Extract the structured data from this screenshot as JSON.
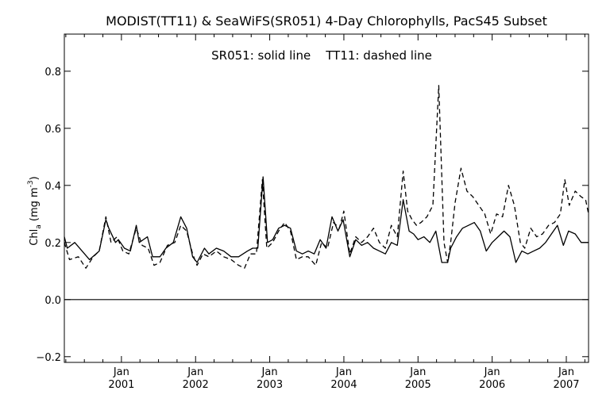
{
  "chart_data": {
    "type": "line",
    "title": "MODIST(TT11) & SeaWiFS(SR051) 4-Day Chlorophylls, PacS45 Subset",
    "legend_text": "SR051: solid line    TT11: dashed line",
    "ylabel": {
      "main": "Chl",
      "sub": "a",
      "units": " (mg m",
      "sup": "-3",
      "close": ")"
    },
    "xlim": [
      2000.23,
      2007.3
    ],
    "ylim": [
      -0.22,
      0.93
    ],
    "yticks": [
      -0.2,
      0.0,
      0.2,
      0.4,
      0.6,
      0.8
    ],
    "ytick_labels": [
      "−0.2",
      "0.0",
      "0.2",
      "0.4",
      "0.6",
      "0.8"
    ],
    "xticks": [
      {
        "value": 2001.0,
        "month": "Jan",
        "year": "2001"
      },
      {
        "value": 2002.0,
        "month": "Jan",
        "year": "2002"
      },
      {
        "value": 2003.0,
        "month": "Jan",
        "year": "2003"
      },
      {
        "value": 2004.0,
        "month": "Jan",
        "year": "2004"
      },
      {
        "value": 2005.0,
        "month": "Jan",
        "year": "2005"
      },
      {
        "value": 2006.0,
        "month": "Jan",
        "year": "2006"
      },
      {
        "value": 2007.0,
        "month": "Jan",
        "year": "2007"
      }
    ],
    "zero_line": 0.0,
    "series": [
      {
        "name": "SR051",
        "style": "solid",
        "x": [
          2000.23,
          2000.27,
          2000.37,
          2000.57,
          2000.7,
          2000.79,
          2000.83,
          2000.92,
          2000.96,
          2001.04,
          2001.12,
          2001.2,
          2001.24,
          2001.35,
          2001.42,
          2001.52,
          2001.6,
          2001.7,
          2001.8,
          2001.88,
          2001.96,
          2002.02,
          2002.12,
          2002.18,
          2002.28,
          2002.38,
          2002.48,
          2002.58,
          2002.7,
          2002.77,
          2002.84,
          2002.91,
          2002.97,
          2003.04,
          2003.12,
          2003.2,
          2003.28,
          2003.36,
          2003.44,
          2003.52,
          2003.6,
          2003.68,
          2003.76,
          2003.84,
          2003.92,
          2003.99,
          2004.08,
          2004.16,
          2004.24,
          2004.32,
          2004.4,
          2004.48,
          2004.56,
          2004.64,
          2004.72,
          2004.8,
          2004.88,
          2004.94,
          2005.0,
          2005.08,
          2005.16,
          2005.24,
          2005.32,
          2005.4,
          2005.44,
          2005.52,
          2005.6,
          2005.68,
          2005.76,
          2005.84,
          2005.92,
          2006.0,
          2006.08,
          2006.16,
          2006.24,
          2006.32,
          2006.4,
          2006.48,
          2006.56,
          2006.64,
          2006.72,
          2006.8,
          2006.88,
          2006.96,
          2007.03,
          2007.12,
          2007.2,
          2007.3
        ],
        "y": [
          0.22,
          0.18,
          0.2,
          0.14,
          0.17,
          0.28,
          0.25,
          0.2,
          0.21,
          0.18,
          0.17,
          0.26,
          0.2,
          0.22,
          0.15,
          0.15,
          0.18,
          0.2,
          0.29,
          0.25,
          0.15,
          0.13,
          0.18,
          0.16,
          0.18,
          0.17,
          0.15,
          0.15,
          0.17,
          0.18,
          0.18,
          0.43,
          0.2,
          0.21,
          0.25,
          0.26,
          0.25,
          0.17,
          0.16,
          0.17,
          0.16,
          0.21,
          0.18,
          0.29,
          0.24,
          0.28,
          0.15,
          0.21,
          0.19,
          0.2,
          0.18,
          0.17,
          0.16,
          0.2,
          0.19,
          0.35,
          0.24,
          0.23,
          0.21,
          0.22,
          0.2,
          0.24,
          0.13,
          0.13,
          0.18,
          0.22,
          0.25,
          0.26,
          0.27,
          0.24,
          0.17,
          0.2,
          0.22,
          0.24,
          0.22,
          0.13,
          0.17,
          0.16,
          0.17,
          0.18,
          0.2,
          0.23,
          0.26,
          0.19,
          0.24,
          0.23,
          0.2,
          0.2
        ]
      },
      {
        "name": "TT11",
        "style": "dashed",
        "x": [
          2000.23,
          2000.3,
          2000.42,
          2000.52,
          2000.62,
          2000.7,
          2000.79,
          2000.86,
          2000.94,
          2001.02,
          2001.1,
          2001.2,
          2001.28,
          2001.36,
          2001.44,
          2001.52,
          2001.62,
          2001.72,
          2001.8,
          2001.88,
          2001.96,
          2002.02,
          2002.1,
          2002.18,
          2002.28,
          2002.38,
          2002.48,
          2002.58,
          2002.66,
          2002.74,
          2002.82,
          2002.9,
          2002.96,
          2003.04,
          2003.12,
          2003.2,
          2003.28,
          2003.36,
          2003.44,
          2003.52,
          2003.62,
          2003.7,
          2003.78,
          2003.86,
          2003.94,
          2004.0,
          2004.08,
          2004.16,
          2004.24,
          2004.32,
          2004.4,
          2004.48,
          2004.56,
          2004.64,
          2004.72,
          2004.8,
          2004.86,
          2004.92,
          2004.98,
          2005.04,
          2005.12,
          2005.2,
          2005.28,
          2005.35,
          2005.4,
          2005.44,
          2005.5,
          2005.58,
          2005.66,
          2005.74,
          2005.82,
          2005.9,
          2005.98,
          2006.06,
          2006.14,
          2006.22,
          2006.3,
          2006.38,
          2006.44,
          2006.52,
          2006.6,
          2006.68,
          2006.76,
          2006.84,
          2006.92,
          2006.98,
          2007.04,
          2007.12,
          2007.2,
          2007.26,
          2007.3
        ],
        "y": [
          0.2,
          0.14,
          0.15,
          0.11,
          0.15,
          0.17,
          0.29,
          0.2,
          0.22,
          0.17,
          0.16,
          0.25,
          0.19,
          0.18,
          0.12,
          0.13,
          0.19,
          0.2,
          0.26,
          0.24,
          0.16,
          0.12,
          0.16,
          0.15,
          0.17,
          0.15,
          0.14,
          0.12,
          0.11,
          0.16,
          0.16,
          0.42,
          0.18,
          0.2,
          0.24,
          0.27,
          0.24,
          0.14,
          0.15,
          0.15,
          0.12,
          0.2,
          0.18,
          0.27,
          0.25,
          0.31,
          0.16,
          0.22,
          0.2,
          0.22,
          0.25,
          0.2,
          0.18,
          0.26,
          0.22,
          0.45,
          0.31,
          0.28,
          0.26,
          0.27,
          0.29,
          0.33,
          0.75,
          0.2,
          0.13,
          0.2,
          0.34,
          0.46,
          0.38,
          0.36,
          0.33,
          0.3,
          0.23,
          0.3,
          0.29,
          0.4,
          0.33,
          0.2,
          0.18,
          0.25,
          0.22,
          0.23,
          0.26,
          0.27,
          0.3,
          0.42,
          0.33,
          0.38,
          0.36,
          0.35,
          0.3
        ]
      }
    ]
  }
}
